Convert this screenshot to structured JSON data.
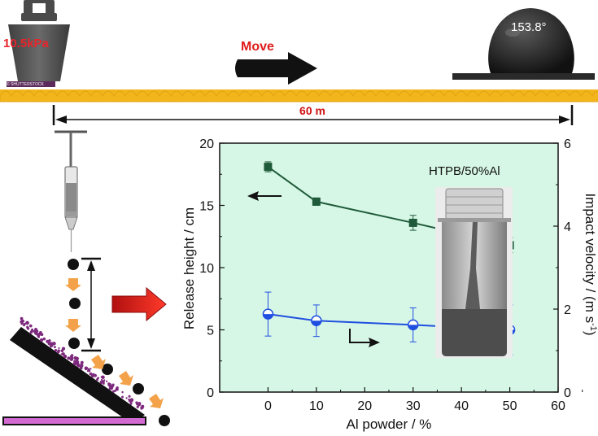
{
  "top": {
    "weight_label": "10.5kPa",
    "weight_caption": "© SHUTTERSTOCK",
    "move_label": "Move",
    "contact_angle": "153.8°",
    "distance_label": "60 m"
  },
  "inset": {
    "sample_label": "HTPB/50%Al"
  },
  "colors": {
    "panel_bg": "#d7f7e6",
    "series_height": "#1f5b3a",
    "series_velocity": "#1f4fe0",
    "move_text": "#e01b1b",
    "distance_text": "#d01010",
    "surface": "#f2b51c",
    "weight": "#555555",
    "weight_text": "#e8242b"
  },
  "chart_data": {
    "type": "line",
    "xlabel": "Al powder / %",
    "ylabel": "Release height / cm",
    "y2label": "Impact velocity / (m s-1)",
    "y2label_main": "Impact velocity / (m s",
    "y2label_sup": "-1",
    "y2label_end": ")",
    "x": [
      0,
      10,
      30,
      50
    ],
    "xlim": [
      -10,
      60
    ],
    "ylim": [
      0,
      20
    ],
    "y2lim": [
      0,
      6
    ],
    "xticks": [
      "0",
      "10",
      "20",
      "30",
      "40",
      "50",
      "60"
    ],
    "xtick_values": [
      0,
      10,
      20,
      30,
      40,
      50,
      60
    ],
    "yticks": [
      "0",
      "5",
      "10",
      "15",
      "20"
    ],
    "ytick_values": [
      0,
      5,
      10,
      15,
      20
    ],
    "y2ticks": [
      "0",
      "2",
      "4",
      "6"
    ],
    "y2tick_values": [
      0,
      2,
      4,
      6
    ],
    "series": [
      {
        "axis": "left",
        "marker": "square",
        "values": [
          18.1,
          15.3,
          13.6,
          11.8
        ],
        "errors": [
          0.4,
          0.3,
          0.6,
          0.6
        ]
      },
      {
        "axis": "right",
        "marker": "half-circle",
        "values": [
          1.88,
          1.72,
          1.62,
          1.5
        ],
        "errors": [
          0.53,
          0.38,
          0.41,
          0.6
        ]
      }
    ]
  }
}
